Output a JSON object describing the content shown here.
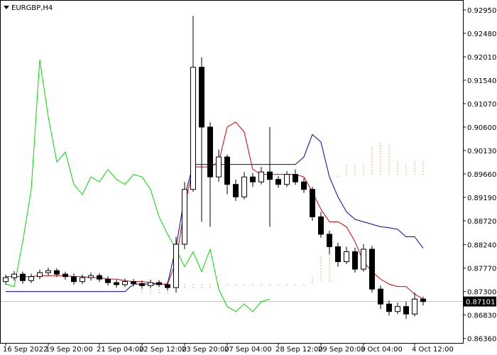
{
  "chart_data": {
    "type": "candlestick",
    "title": "EURGBP,H4",
    "categories": [
      "16 Sep 2022",
      null,
      null,
      null,
      null,
      "19 Sep 20:00",
      null,
      null,
      null,
      null,
      null,
      "21 Sep 04:00",
      null,
      null,
      null,
      null,
      "22 Sep 12:00",
      null,
      null,
      null,
      null,
      "23 Sep 20:00",
      null,
      null,
      null,
      null,
      "27 Sep 04:00",
      null,
      null,
      null,
      null,
      null,
      "28 Sep 12:00",
      null,
      null,
      null,
      null,
      "29 Sep 20:00",
      null,
      null,
      null,
      null,
      "3 Oct 04:00",
      null,
      null,
      null,
      null,
      null,
      "4 Oct 12:00",
      null
    ],
    "open": [
      0.875,
      0.8758,
      0.8765,
      0.8752,
      0.876,
      0.8768,
      0.8772,
      0.8765,
      0.876,
      0.875,
      0.8758,
      0.8762,
      0.8755,
      0.8748,
      0.8744,
      0.875,
      0.8746,
      0.8742,
      0.8748,
      0.8744,
      0.8738,
      0.8825,
      0.8935,
      0.918,
      0.906,
      0.896,
      0.9,
      0.8945,
      0.892,
      0.896,
      0.895,
      0.897,
      0.8955,
      0.8945,
      0.8965,
      0.895,
      0.8935,
      0.888,
      0.8845,
      0.882,
      0.879,
      0.881,
      0.8775,
      0.8815,
      0.8735,
      0.8705,
      0.869,
      0.87,
      0.8685,
      0.8715
    ],
    "high": [
      0.8764,
      0.8771,
      0.877,
      0.8766,
      0.8774,
      0.8778,
      0.8777,
      0.877,
      0.8766,
      0.8764,
      0.8768,
      0.8767,
      0.8761,
      0.8754,
      0.8756,
      0.8755,
      0.8752,
      0.8754,
      0.8753,
      0.875,
      0.884,
      0.895,
      0.9283,
      0.92,
      0.907,
      0.9015,
      0.9005,
      0.8955,
      0.897,
      0.8968,
      0.898,
      0.906,
      0.8962,
      0.8972,
      0.8975,
      0.8958,
      0.894,
      0.889,
      0.8852,
      0.8828,
      0.882,
      0.8818,
      0.8825,
      0.8822,
      0.8742,
      0.8712,
      0.8708,
      0.871,
      0.8728,
      0.872
    ],
    "low": [
      0.8744,
      0.8752,
      0.8746,
      0.8747,
      0.8755,
      0.8762,
      0.8759,
      0.8754,
      0.8744,
      0.8745,
      0.8752,
      0.8749,
      0.8742,
      0.8738,
      0.8739,
      0.874,
      0.8736,
      0.8737,
      0.8739,
      0.8732,
      0.8728,
      0.8815,
      0.893,
      0.887,
      0.886,
      0.895,
      0.8925,
      0.8912,
      0.8915,
      0.894,
      0.8945,
      0.886,
      0.8938,
      0.894,
      0.8944,
      0.8928,
      0.8872,
      0.8838,
      0.8805,
      0.878,
      0.8785,
      0.8768,
      0.877,
      0.8728,
      0.8695,
      0.8682,
      0.8685,
      0.8675,
      0.868,
      0.8702
    ],
    "close": [
      0.8758,
      0.8765,
      0.8752,
      0.876,
      0.8768,
      0.8772,
      0.8765,
      0.876,
      0.875,
      0.8758,
      0.8762,
      0.8755,
      0.8748,
      0.8744,
      0.875,
      0.8746,
      0.8742,
      0.8748,
      0.8744,
      0.8738,
      0.8825,
      0.8935,
      0.918,
      0.906,
      0.896,
      0.9,
      0.8945,
      0.892,
      0.896,
      0.895,
      0.897,
      0.8955,
      0.8945,
      0.8965,
      0.895,
      0.8935,
      0.888,
      0.8845,
      0.882,
      0.879,
      0.881,
      0.8775,
      0.8815,
      0.8735,
      0.8705,
      0.869,
      0.87,
      0.8685,
      0.8715,
      0.871
    ],
    "up_color": "#ffffff",
    "down_color": "#000000",
    "lines": [
      {
        "color": "#00dd00",
        "values": [
          0.8745,
          0.874,
          0.883,
          0.8935,
          0.9195,
          0.908,
          0.899,
          0.901,
          0.8945,
          0.8925,
          0.896,
          0.895,
          0.8975,
          0.8955,
          0.8945,
          0.8965,
          0.896,
          0.8935,
          0.888,
          0.8845,
          0.8815,
          0.878,
          0.881,
          0.877,
          0.8815,
          0.8735,
          0.87,
          0.869,
          0.8705,
          0.869,
          0.871,
          0.8715,
          null,
          null,
          null,
          null,
          null,
          null,
          null,
          null,
          null,
          null,
          null,
          null,
          null,
          null,
          null,
          null,
          null,
          null
        ]
      },
      {
        "color": "#0000bb",
        "values": [
          0.873,
          0.873,
          0.873,
          0.873,
          0.873,
          0.873,
          0.873,
          0.873,
          0.873,
          0.873,
          0.873,
          0.873,
          0.873,
          0.873,
          0.873,
          0.8745,
          0.8745,
          0.8745,
          0.8745,
          0.8745,
          0.882,
          0.892,
          0.8985,
          0.8985,
          0.8985,
          0.8985,
          0.8985,
          0.8985,
          0.8985,
          0.8985,
          0.8985,
          0.8985,
          0.8985,
          0.8985,
          0.8985,
          0.9,
          0.9045,
          0.903,
          0.896,
          0.892,
          0.889,
          0.8875,
          0.887,
          0.8865,
          0.886,
          0.8858,
          0.8855,
          0.884,
          0.884,
          0.8817
        ]
      },
      {
        "color": "#dd0000",
        "values": [
          0.876,
          0.876,
          0.876,
          0.876,
          0.8762,
          0.8762,
          0.8762,
          0.8762,
          0.876,
          0.876,
          0.8758,
          0.8758,
          0.8755,
          0.8755,
          0.8752,
          0.875,
          0.875,
          0.8748,
          0.8745,
          0.8745,
          0.879,
          0.89,
          0.898,
          0.898,
          0.898,
          0.899,
          0.906,
          0.907,
          0.905,
          0.8975,
          0.8965,
          0.8965,
          0.8965,
          0.8965,
          0.8965,
          0.896,
          0.893,
          0.8895,
          0.887,
          0.887,
          0.886,
          0.883,
          0.879,
          0.877,
          0.8755,
          0.8745,
          0.874,
          0.874,
          0.8725,
          0.8715
        ]
      }
    ],
    "cloud": {
      "color": "#f0a070",
      "span_a": [
        null,
        null,
        null,
        null,
        null,
        null,
        null,
        null,
        null,
        null,
        null,
        null,
        null,
        null,
        null,
        null,
        0.8735,
        0.8735,
        0.8735,
        0.8735,
        0.874,
        0.8745,
        0.8745,
        0.8745,
        0.8745,
        0.8745,
        0.8745,
        0.8745,
        0.8745,
        0.8745,
        0.8745,
        0.8745,
        0.8745,
        0.8745,
        0.8745,
        0.8745,
        0.876,
        0.88,
        0.885,
        0.896,
        0.8985,
        0.8985,
        0.8985,
        0.902,
        0.903,
        0.9025,
        0.899,
        0.8985,
        0.899,
        0.899
      ],
      "span_b": [
        null,
        null,
        null,
        null,
        null,
        null,
        null,
        null,
        null,
        null,
        null,
        null,
        null,
        null,
        null,
        null,
        0.8725,
        0.8725,
        0.8725,
        0.8725,
        0.8735,
        0.8735,
        0.8735,
        0.8735,
        0.8735,
        0.8735,
        0.874,
        0.874,
        0.874,
        0.874,
        0.874,
        0.874,
        0.874,
        0.874,
        0.874,
        0.874,
        0.8745,
        0.875,
        0.875,
        0.8965,
        0.8965,
        0.8965,
        0.8965,
        0.8965,
        0.8965,
        0.8965,
        0.8965,
        0.8965,
        0.8965,
        0.8965
      ]
    },
    "last_price": 0.87101,
    "ylim": [
      0.8627,
      0.93149
    ],
    "yticks": [
      {
        "value": 0.9295,
        "label": "0.92950"
      },
      {
        "value": 0.9248,
        "label": "0.92480"
      },
      {
        "value": 0.9201,
        "label": "0.92010"
      },
      {
        "value": 0.9154,
        "label": "0.91540"
      },
      {
        "value": 0.9107,
        "label": "0.91070"
      },
      {
        "value": 0.906,
        "label": "0.90600"
      },
      {
        "value": 0.9013,
        "label": "0.90130"
      },
      {
        "value": 0.8966,
        "label": "0.89660"
      },
      {
        "value": 0.8919,
        "label": "0.89190"
      },
      {
        "value": 0.8872,
        "label": "0.88720"
      },
      {
        "value": 0.8824,
        "label": "0.88240"
      },
      {
        "value": 0.8777,
        "label": "0.87770"
      },
      {
        "value": 0.873,
        "label": "0.87300"
      },
      {
        "value": 0.8683,
        "label": "0.86830"
      },
      {
        "value": 0.8636,
        "label": "0.86360"
      }
    ],
    "grid": false
  }
}
